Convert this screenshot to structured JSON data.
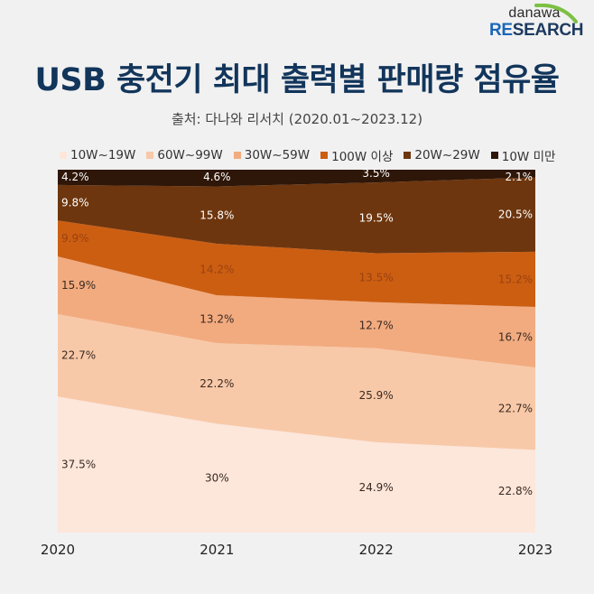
{
  "logo": {
    "top": "danawa",
    "bottom_re": "RE",
    "bottom_rest": "SEARCH"
  },
  "title": "USB 충전기 최대 출력별 판매량 점유율",
  "subtitle": "출처: 다나와 리서치 (2020.01~2023.12)",
  "chart_data": {
    "type": "area",
    "stacked": "percent",
    "title": "USB 충전기 최대 출력별 판매량 점유율",
    "subtitle": "출처: 다나와 리서치 (2020.01~2023.12)",
    "x": [
      "2020",
      "2021",
      "2022",
      "2023"
    ],
    "ylim": [
      0,
      100
    ],
    "legend_position": "top",
    "grid": false,
    "series": [
      {
        "name": "10W~19W",
        "color": "#fde6da",
        "label_color": "#3a2a22",
        "values": [
          37.5,
          30,
          24.9,
          22.8
        ],
        "labels": [
          "37.5%",
          "30%",
          "24.9%",
          "22.8%"
        ]
      },
      {
        "name": "60W~99W",
        "color": "#f8c9a8",
        "label_color": "#3a2a22",
        "values": [
          22.7,
          22.2,
          25.9,
          22.7
        ],
        "labels": [
          "22.7%",
          "22.2%",
          "25.9%",
          "22.7%"
        ]
      },
      {
        "name": "30W~59W",
        "color": "#f2ab7f",
        "label_color": "#3a2a22",
        "values": [
          15.9,
          13.2,
          12.7,
          16.7
        ],
        "labels": [
          "15.9%",
          "13.2%",
          "12.7%",
          "16.7%"
        ]
      },
      {
        "name": "100W 이상",
        "color": "#cc5e12",
        "label_color": "#9a4210",
        "values": [
          9.9,
          14.2,
          13.5,
          15.2
        ],
        "labels": [
          "9.9%",
          "14.2%",
          "13.5%",
          "15.2%"
        ]
      },
      {
        "name": "20W~29W",
        "color": "#6e360e",
        "label_color": "#ffffff",
        "values": [
          9.8,
          15.8,
          19.5,
          20.5
        ],
        "labels": [
          "9.8%",
          "15.8%",
          "19.5%",
          "20.5%"
        ]
      },
      {
        "name": "10W 미만",
        "color": "#2e1608",
        "label_color": "#ffffff",
        "values": [
          4.2,
          4.6,
          3.5,
          2.1
        ],
        "labels": [
          "4.2%",
          "4.6%",
          "3.5%",
          "2.1%"
        ]
      }
    ],
    "legend_order": [
      "10W~19W",
      "60W~99W",
      "30W~59W",
      "100W 이상",
      "20W~29W",
      "10W 미만"
    ]
  }
}
